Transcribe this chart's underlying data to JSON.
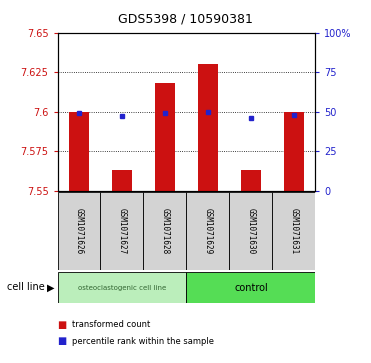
{
  "title": "GDS5398 / 10590381",
  "samples": [
    "GSM1071626",
    "GSM1071627",
    "GSM1071628",
    "GSM1071629",
    "GSM1071630",
    "GSM1071631"
  ],
  "bar_tops": [
    7.6,
    7.563,
    7.618,
    7.63,
    7.563,
    7.6
  ],
  "bar_bottom": 7.55,
  "percentile_values": [
    7.599,
    7.597,
    7.599,
    7.6,
    7.596,
    7.598
  ],
  "ylim": [
    7.55,
    7.65
  ],
  "yticks_left": [
    7.55,
    7.575,
    7.6,
    7.625,
    7.65
  ],
  "yticks_right": [
    0,
    25,
    50,
    75,
    100
  ],
  "bar_color": "#cc1111",
  "marker_color": "#2222cc",
  "group_labels": [
    "osteoclastogenic cell line",
    "control"
  ],
  "group_colors": [
    "#bbeebb",
    "#55dd55"
  ],
  "cell_line_label": "cell line",
  "legend_items": [
    "transformed count",
    "percentile rank within the sample"
  ],
  "legend_colors": [
    "#cc1111",
    "#2222cc"
  ],
  "background_color": "#ffffff"
}
